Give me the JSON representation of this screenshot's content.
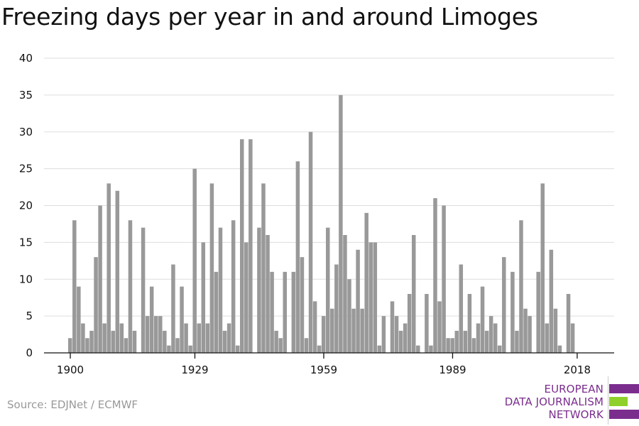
{
  "chart_data": {
    "type": "bar",
    "title": "Freezing days per year in and around Limoges",
    "x_start": 1900,
    "x_end": 2018,
    "xticks": [
      1900,
      1929,
      1959,
      1989,
      2018
    ],
    "yticks": [
      0,
      5,
      10,
      15,
      20,
      25,
      30,
      35,
      40
    ],
    "ylim": [
      0,
      40
    ],
    "grid": true,
    "bar_color": "#999999",
    "values": [
      2,
      18,
      9,
      4,
      2,
      3,
      13,
      20,
      4,
      23,
      3,
      22,
      4,
      2,
      18,
      3,
      0,
      17,
      5,
      9,
      5,
      5,
      3,
      1,
      12,
      2,
      9,
      4,
      1,
      25,
      4,
      15,
      4,
      23,
      11,
      17,
      3,
      4,
      18,
      1,
      29,
      15,
      29,
      0,
      17,
      23,
      16,
      11,
      3,
      2,
      11,
      0,
      11,
      26,
      13,
      2,
      30,
      7,
      1,
      5,
      17,
      6,
      12,
      35,
      16,
      10,
      6,
      14,
      6,
      19,
      15,
      15,
      1,
      5,
      0,
      7,
      5,
      3,
      4,
      8,
      16,
      1,
      0,
      8,
      1,
      21,
      7,
      20,
      2,
      2,
      3,
      12,
      3,
      8,
      2,
      4,
      9,
      3,
      5,
      4,
      1,
      13,
      0,
      11,
      3,
      18,
      6,
      5,
      0,
      11,
      23,
      4,
      14,
      6,
      1,
      0,
      8,
      4,
      0
    ]
  },
  "source": "Source: EDJNet / ECMWF",
  "logo": {
    "line1": "EUROPEAN",
    "line2": "DATA JOURNALISM",
    "line3": "NETWORK",
    "purple": "#7b2d8e",
    "green": "#8fd12a"
  }
}
